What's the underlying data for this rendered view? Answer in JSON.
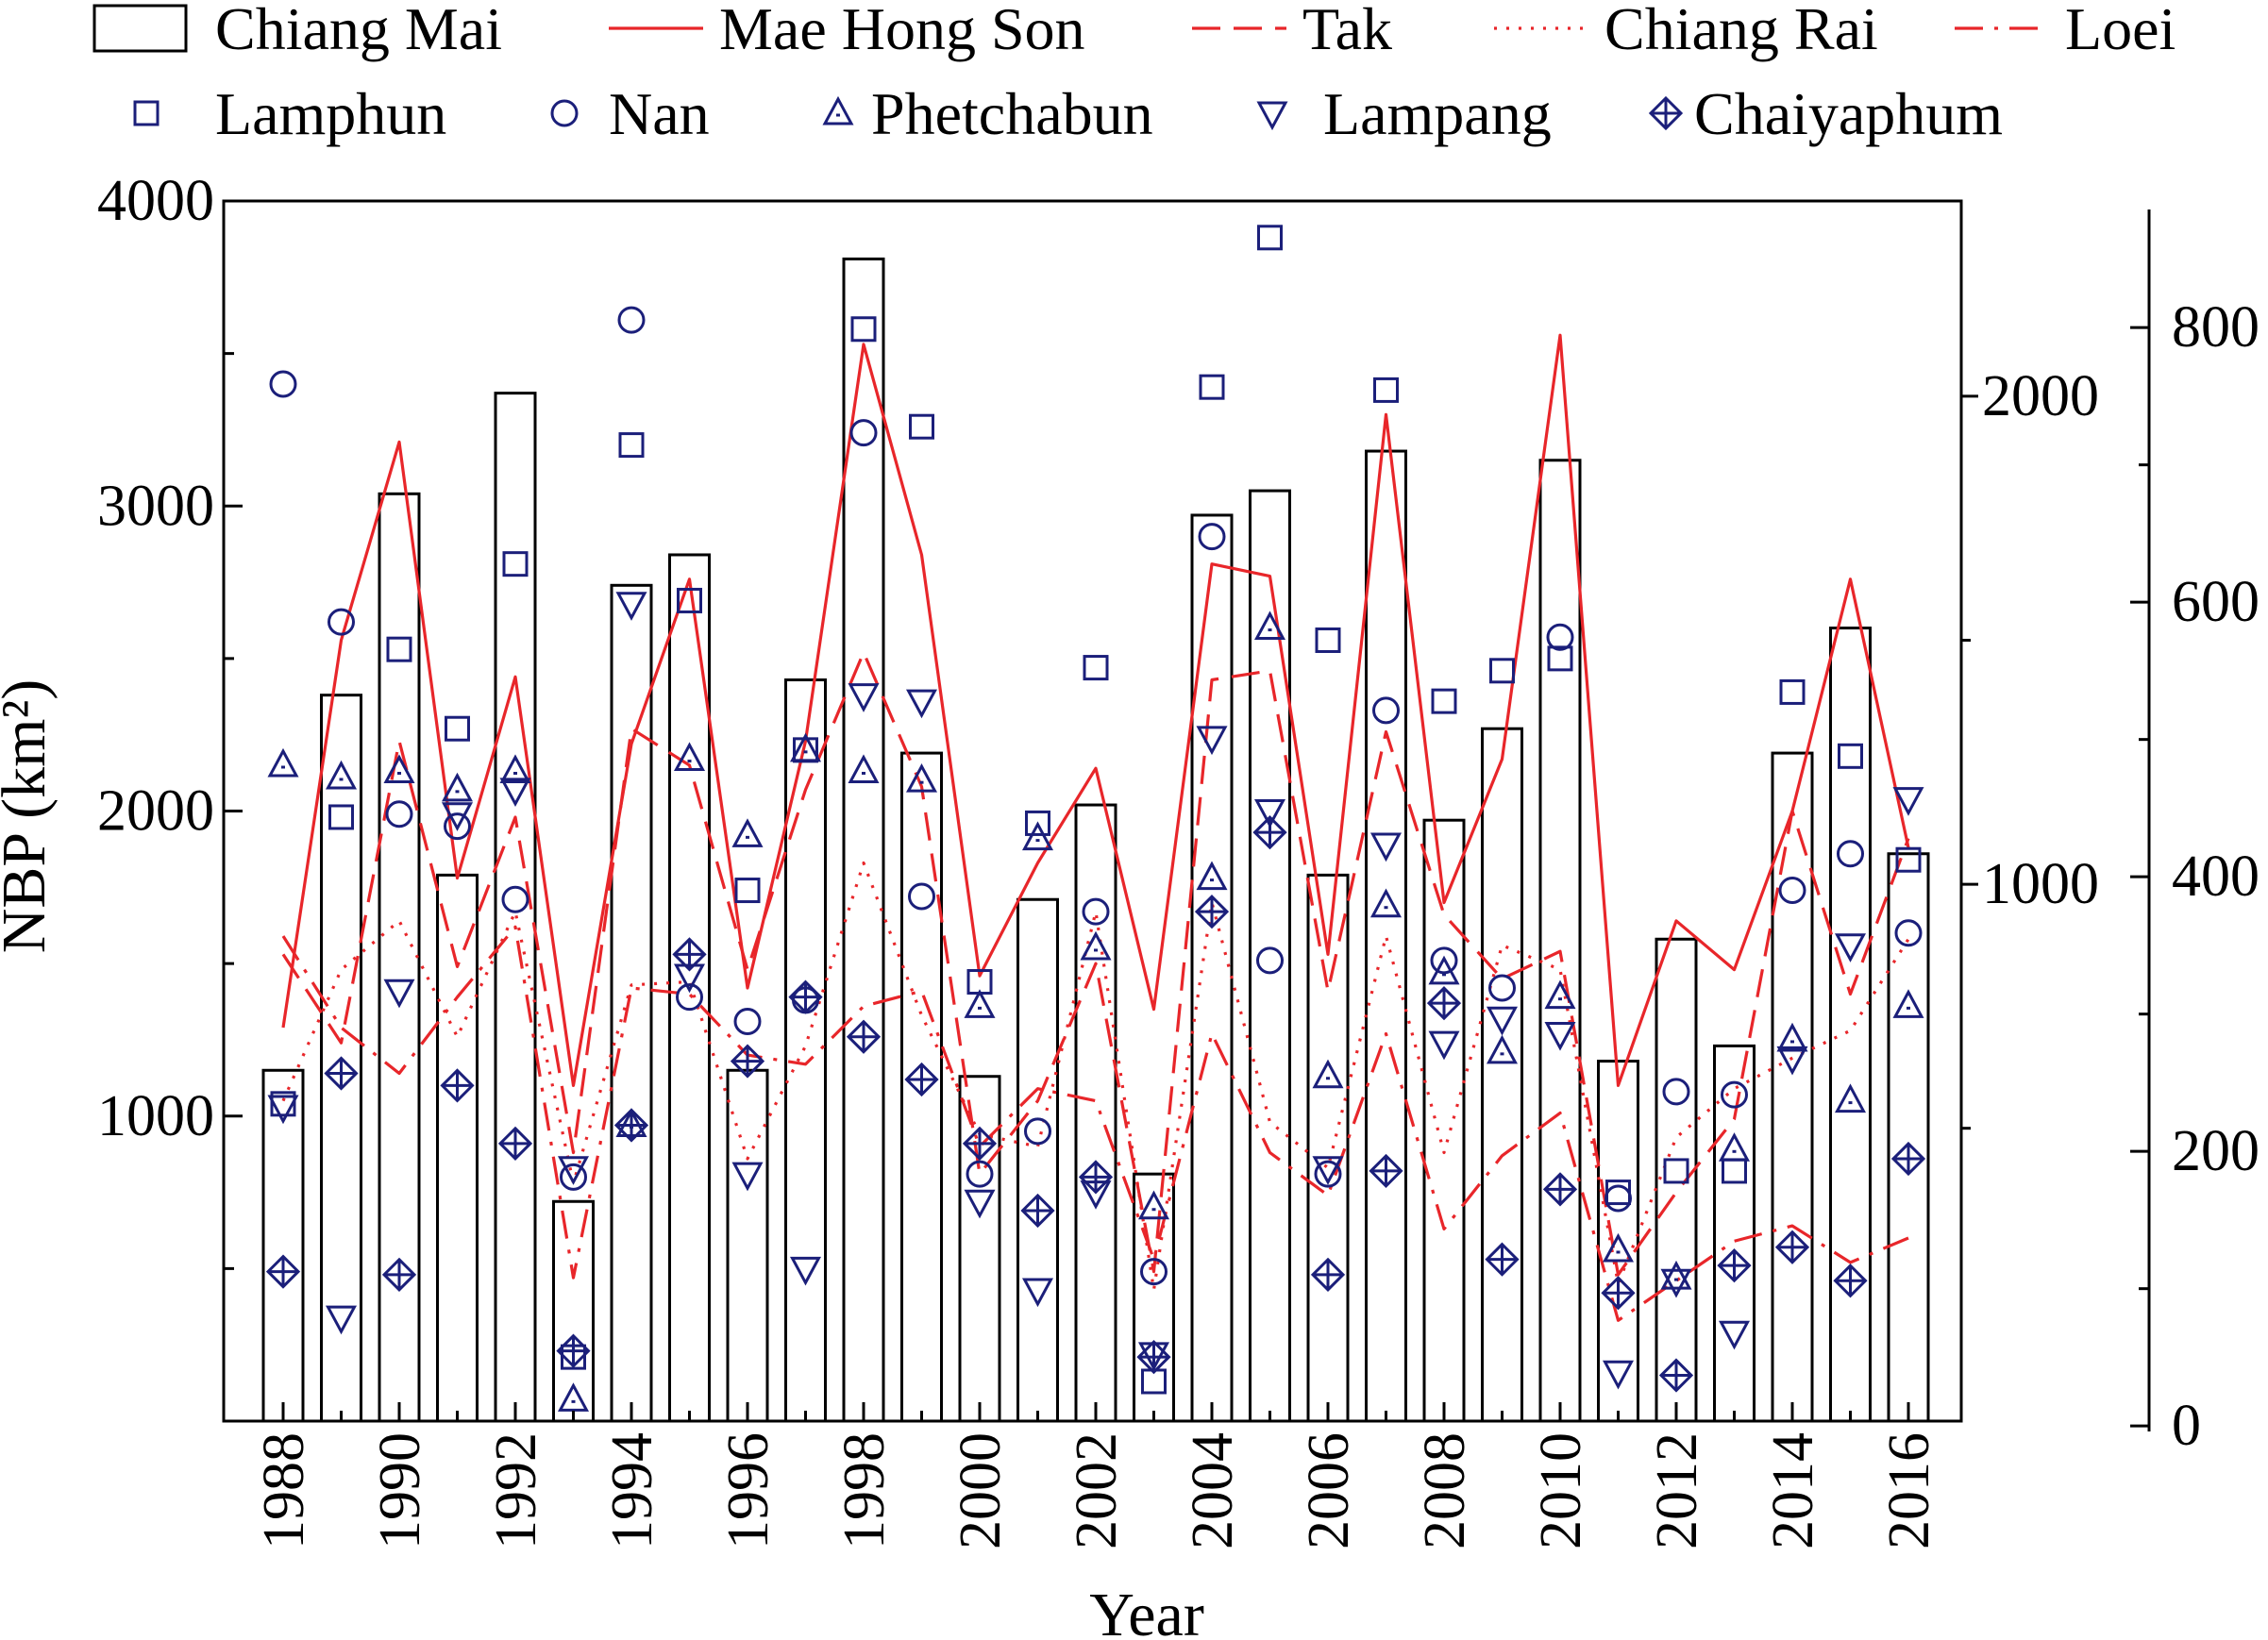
{
  "chart_data": {
    "type": "bar",
    "xlabel": "Year",
    "ylabel": "NBP (km²)",
    "x": [
      1988,
      1989,
      1990,
      1991,
      1992,
      1993,
      1994,
      1995,
      1996,
      1997,
      1998,
      1999,
      2000,
      2001,
      2002,
      2003,
      2004,
      2005,
      2006,
      2007,
      2008,
      2009,
      2010,
      2011,
      2012,
      2013,
      2014,
      2015,
      2016
    ],
    "x_ticks": [
      1988,
      1990,
      1992,
      1994,
      1996,
      1998,
      2000,
      2002,
      2004,
      2006,
      2008,
      2010,
      2012,
      2014,
      2016
    ],
    "axes": {
      "left": {
        "ylim": [
          0,
          4000
        ],
        "ticks": [
          1000,
          2000,
          3000,
          4000
        ]
      },
      "right_inner": {
        "ylim": [
          -100,
          2400
        ],
        "ticks": [
          1000,
          2000
        ]
      },
      "right_outer": {
        "ylim": [
          -4,
          886
        ],
        "ticks": [
          0,
          200,
          400,
          600,
          800
        ]
      }
    },
    "legend_position": "top",
    "series": [
      {
        "name": "Chiang Mai",
        "kind": "bar",
        "axis": "left",
        "color": "#000000",
        "values": [
          1150,
          2380,
          3040,
          1790,
          3370,
          720,
          2740,
          2840,
          1150,
          2430,
          3810,
          2190,
          1130,
          1710,
          2020,
          810,
          2970,
          3050,
          1790,
          3180,
          1970,
          2270,
          3150,
          1180,
          1580,
          1230,
          2190,
          2600,
          1860
        ]
      },
      {
        "name": "Mae Hong Son",
        "kind": "line",
        "axis": "left",
        "color": "#e8262a",
        "dash": "",
        "values": [
          1290,
          2560,
          3210,
          1780,
          2440,
          1100,
          2220,
          2760,
          1420,
          2230,
          3530,
          2840,
          1460,
          1830,
          2140,
          1350,
          2810,
          2770,
          1530,
          3300,
          1700,
          2170,
          3560,
          1100,
          1640,
          1480,
          2000,
          2760,
          1880
        ]
      },
      {
        "name": "Tak",
        "kind": "line",
        "axis": "left",
        "color": "#e8262a",
        "dash": "30,14",
        "values": [
          1530,
          1240,
          2230,
          1490,
          1980,
          880,
          2270,
          2150,
          1480,
          2070,
          2520,
          2080,
          810,
          1050,
          1500,
          490,
          2430,
          2460,
          1410,
          2260,
          1660,
          1450,
          1540,
          480,
          750,
          990,
          2000,
          1400,
          1910
        ]
      },
      {
        "name": "Chiang Rai",
        "kind": "line",
        "axis": "left",
        "color": "#e8262a",
        "dash": "3,10",
        "values": [
          1050,
          1480,
          1640,
          1260,
          1670,
          780,
          1430,
          1440,
          860,
          1230,
          1830,
          1330,
          940,
          900,
          1670,
          430,
          1700,
          980,
          830,
          1590,
          880,
          1560,
          1480,
          450,
          930,
          1090,
          1190,
          1280,
          1580
        ]
      },
      {
        "name": "Loei",
        "kind": "line",
        "axis": "left",
        "color": "#e8262a",
        "dash": "30,12,4,12",
        "values": [
          1590,
          1290,
          1140,
          1390,
          1620,
          470,
          1420,
          1400,
          1200,
          1170,
          1360,
          1410,
          900,
          1090,
          1050,
          530,
          1270,
          880,
          740,
          1270,
          630,
          870,
          1010,
          330,
          460,
          590,
          640,
          520,
          600
        ]
      },
      {
        "name": "Lamphun",
        "kind": "marker",
        "marker": "square",
        "axis": "left",
        "color": "#1b1f7a",
        "values": [
          1040,
          1980,
          2530,
          2270,
          2810,
          210,
          3200,
          2690,
          1740,
          2200,
          3580,
          3260,
          1440,
          1960,
          2470,
          130,
          3390,
          3880,
          2560,
          3380,
          2360,
          2460,
          2500,
          750,
          820,
          820,
          2390,
          2180,
          1840
        ]
      },
      {
        "name": "Nan",
        "kind": "marker",
        "marker": "circle",
        "axis": "left",
        "color": "#1b1f7a",
        "values": [
          3400,
          2620,
          1990,
          1950,
          1710,
          800,
          3610,
          1390,
          1310,
          1380,
          3240,
          1720,
          810,
          950,
          1670,
          490,
          2900,
          1510,
          810,
          2330,
          1510,
          1420,
          2570,
          730,
          1080,
          1070,
          1740,
          1860,
          1600
        ]
      },
      {
        "name": "Phetchabun",
        "kind": "marker",
        "marker": "triangle-up",
        "axis": "left",
        "color": "#1b1f7a",
        "values": [
          2150,
          2110,
          2130,
          2070,
          2130,
          70,
          970,
          2170,
          1920,
          2200,
          2130,
          2100,
          1360,
          1910,
          1550,
          700,
          1780,
          2600,
          1130,
          1690,
          1470,
          1210,
          1390,
          560,
          470,
          890,
          1250,
          1050,
          1360
        ]
      },
      {
        "name": "Lampang",
        "kind": "marker",
        "marker": "triangle-down",
        "axis": "left",
        "color": "#1b1f7a",
        "values": [
          1030,
          340,
          1410,
          1990,
          2070,
          830,
          2680,
          1460,
          810,
          500,
          2380,
          2360,
          720,
          430,
          750,
          220,
          2240,
          2000,
          830,
          1890,
          1240,
          1320,
          1270,
          160,
          460,
          290,
          1190,
          1560,
          2040
        ]
      },
      {
        "name": "Chaiyaphum",
        "kind": "marker",
        "marker": "diamond-cross",
        "axis": "left",
        "color": "#1b1f7a",
        "values": [
          490,
          1140,
          480,
          1100,
          910,
          230,
          970,
          1530,
          1180,
          1390,
          1260,
          1120,
          910,
          690,
          800,
          210,
          1670,
          1930,
          480,
          820,
          1370,
          530,
          760,
          420,
          150,
          510,
          570,
          460,
          860
        ]
      }
    ]
  }
}
